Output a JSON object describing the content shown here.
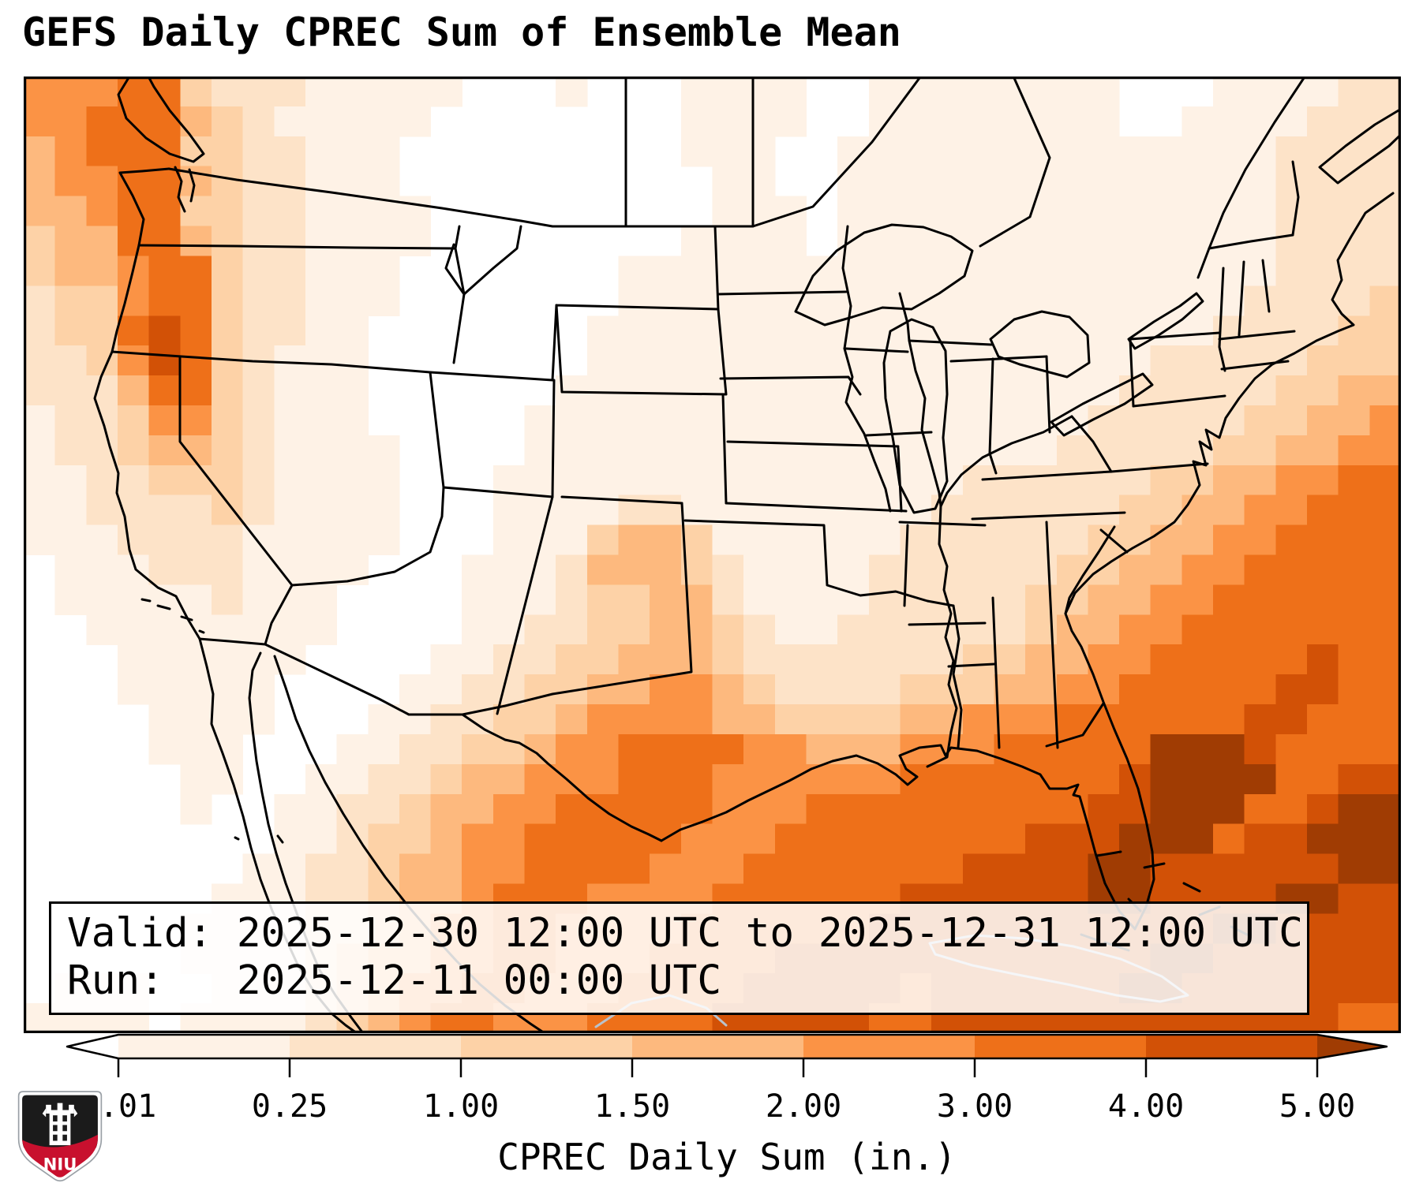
{
  "title": "GEFS Daily CPREC Sum of Ensemble Mean",
  "info_box": {
    "valid_line": "Valid: 2025-12-30 12:00 UTC to 2025-12-31 12:00 UTC",
    "run_line": "Run:   2025-12-11 00:00 UTC"
  },
  "colorbar": {
    "label": "CPREC Daily Sum (in.)",
    "tick_labels": [
      "0.01",
      "0.25",
      "1.00",
      "1.50",
      "2.00",
      "3.00",
      "4.00",
      "5.00"
    ],
    "under_color": "#ffffff",
    "over_color": "#a03c03",
    "segment_colors": [
      "#fef2e6",
      "#fde3c8",
      "#fdd2a7",
      "#fdb97e",
      "#fb9345",
      "#ee7019",
      "#d25106"
    ]
  },
  "logo": {
    "text": "NIU",
    "red": "#c8102e",
    "dark": "#1b1b1b"
  },
  "map": {
    "frame_color": "#000000",
    "border_color": "#000000",
    "foreign_border_color": "#b9c2cc",
    "precip_grid": {
      "note": "daily CPREC ensemble-mean field, level index 0-8 maps to palette bins <0.01,0.01-0.25,0.25-1,1-1.5,1.5-2,2-3,3-4,4-5,>5 in.",
      "palette": [
        "#ffffff",
        "#fef2e6",
        "#fde3c8",
        "#fdd2a7",
        "#fdb97e",
        "#fb9345",
        "#ee7019",
        "#d25106",
        "#a03c03"
      ],
      "cols": 44,
      "rows": [
        "55566322211111000100011110011111111000111122",
        "55666432111110000000011110011111111001111222",
        "45666332211100000000011100111111111111112222",
        "45566432211100000000001100111111111111112222",
        "44566332211110000000001110111111111111112222",
        "34466432211110000000011110111111111111112222",
        "34456632211100000001111111111111111111112222",
        "23356632211100000001111111111111111111122223",
        "23367632211000000011111111111111111111222233",
        "22357632111000000011111111111111111122222333",
        "22246632111000000111111111111111111222223344",
        "12235532111000001111111111111111112222233445",
        "12234432111100001111111111111111122222334455",
        "11223332111100011111111111111122222233445566",
        "11222232111100011112211111111222222334455666",
        "11122221111100011134431111112222223344556666",
        "01112221111000111244432111122222233445566666",
        "01111121110000111233442111122222334455666666",
        "00111111110000112233443211222222344556666666",
        "00011111100001122334443222222233445566666766",
        "00011111000011223344554322223334455666667766",
        "00001111000112233455554433334455566666677666",
        "00001110001122334556666554445556666688876666",
        "00000110011223445556665555556666666788886677",
        "00000100112234455666665556666666667788866788",
        "00000000112334556666655566666666777888677888",
        "00000001122344556666555666666677778877777788",
        "00000011122344566655556666667777778877778877",
        "00000111122345566555566666677777777777887777",
        "00000111123445566555666677777777777788777777",
        "01110011123455665556666777776777777887777777",
        "11110111123456655566667777766777777777777766"
      ]
    }
  }
}
